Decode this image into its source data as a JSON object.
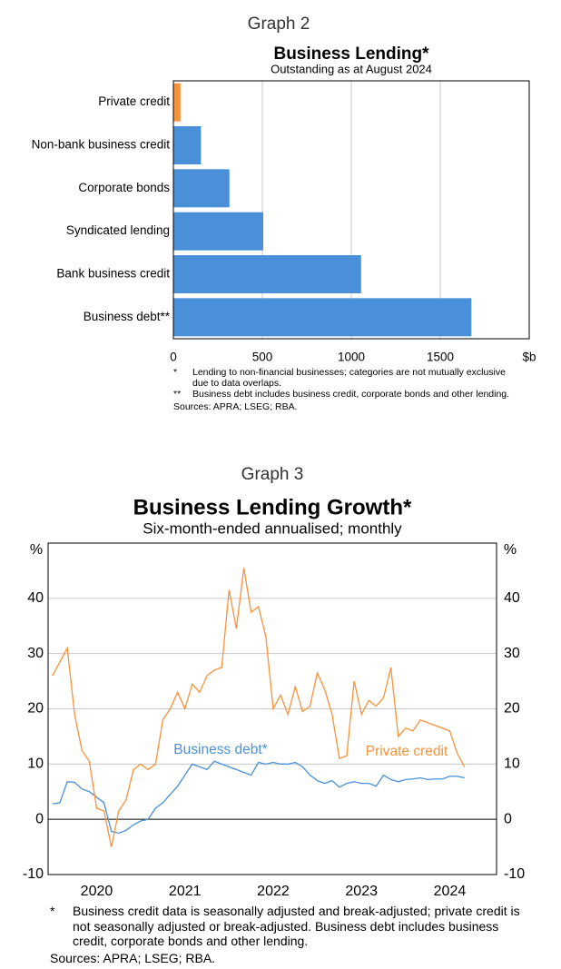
{
  "chart_data": [
    {
      "type": "hbar",
      "label": "Graph 2",
      "title": "Business Lending*",
      "subtitle": "Outstanding as at August 2024",
      "categories": [
        "Private credit",
        "Non-bank business credit",
        "Corporate bonds",
        "Syndicated lending",
        "Bank business credit",
        "Business debt**"
      ],
      "values": [
        40,
        155,
        315,
        505,
        1055,
        1675
      ],
      "colors": [
        "#f7923a",
        "#4a90d9",
        "#4a90d9",
        "#4a90d9",
        "#4a90d9",
        "#4a90d9"
      ],
      "xlim": [
        0,
        2000
      ],
      "xticks": [
        0,
        500,
        1000,
        1500
      ],
      "x_unit": "$b",
      "grid": true,
      "notes": [
        {
          "marker": "*",
          "text": "Lending to non-financial businesses; categories are not mutually exclusive due to data overlaps."
        },
        {
          "marker": "**",
          "text": "Business debt includes business credit, corporate bonds and other lending."
        }
      ],
      "sources": "Sources: APRA; LSEG; RBA."
    },
    {
      "type": "line",
      "label": "Graph 3",
      "title": "Business Lending Growth*",
      "subtitle": "Six-month-ended annualised; monthly",
      "x": [
        2020,
        2020.083,
        2020.167,
        2020.25,
        2020.333,
        2020.417,
        2020.5,
        2020.583,
        2020.667,
        2020.75,
        2020.833,
        2020.917,
        2021,
        2021.083,
        2021.167,
        2021.25,
        2021.333,
        2021.417,
        2021.5,
        2021.583,
        2021.667,
        2021.75,
        2021.833,
        2021.917,
        2022,
        2022.083,
        2022.167,
        2022.25,
        2022.333,
        2022.417,
        2022.5,
        2022.583,
        2022.667,
        2022.75,
        2022.833,
        2022.917,
        2023,
        2023.083,
        2023.167,
        2023.25,
        2023.333,
        2023.417,
        2023.5,
        2023.583,
        2023.667,
        2023.75,
        2023.833,
        2023.917,
        2024,
        2024.083,
        2024.167,
        2024.25,
        2024.333,
        2024.417,
        2024.5,
        2024.583,
        2024.667
      ],
      "series": [
        {
          "name": "Business debt*",
          "color": "#4a90d9",
          "values": [
            2.8,
            3,
            6.8,
            6.7,
            5.5,
            5,
            4,
            3,
            -2.2,
            -2.5,
            -2,
            -1,
            -0.3,
            0,
            2,
            3,
            4.5,
            6,
            8,
            10,
            9.5,
            9,
            10.5,
            10,
            9.5,
            9,
            8.5,
            8,
            10.3,
            10,
            10.3,
            10,
            10,
            10.3,
            9.5,
            8,
            7,
            6.5,
            7,
            5.8,
            6.5,
            6.8,
            6.5,
            6.5,
            6,
            8,
            7.2,
            6.8,
            7.2,
            7.3,
            7.5,
            7.2,
            7.3,
            7.3,
            7.8,
            7.8,
            7.5
          ]
        },
        {
          "name": "Private credit",
          "color": "#f7923a",
          "values": [
            26,
            28.5,
            31,
            19,
            12.5,
            10.5,
            2,
            1.5,
            -5,
            1.5,
            3.5,
            9,
            10,
            9,
            10,
            18,
            20,
            23,
            20,
            24.5,
            23,
            26,
            27,
            27.5,
            41.5,
            34.5,
            45.5,
            37.5,
            38.5,
            33,
            20,
            22.5,
            19,
            24,
            19.5,
            20.5,
            26.5,
            23.5,
            19,
            11,
            11.5,
            25,
            19,
            21.5,
            20.5,
            22,
            27.5,
            15,
            16.5,
            16,
            18,
            17.5,
            17,
            16.5,
            16,
            12,
            9.5
          ]
        }
      ],
      "xlim": [
        2019.95,
        2025.03
      ],
      "xticks": [
        {
          "value": 2020.5,
          "label": "2020"
        },
        {
          "value": 2021.5,
          "label": "2021"
        },
        {
          "value": 2022.5,
          "label": "2022"
        },
        {
          "value": 2023.5,
          "label": "2023"
        },
        {
          "value": 2024.5,
          "label": "2024"
        }
      ],
      "ylim": [
        -10,
        50
      ],
      "yticks": [
        -10,
        0,
        10,
        20,
        30,
        40
      ],
      "y_unit": "%",
      "grid": true,
      "notes": [
        {
          "marker": "*",
          "text": "Business credit data is seasonally adjusted and break-adjusted; private credit is not seasonally adjusted or break-adjusted. Business debt includes business credit, corporate bonds and other lending."
        }
      ],
      "sources": "Sources: APRA; LSEG; RBA."
    }
  ]
}
